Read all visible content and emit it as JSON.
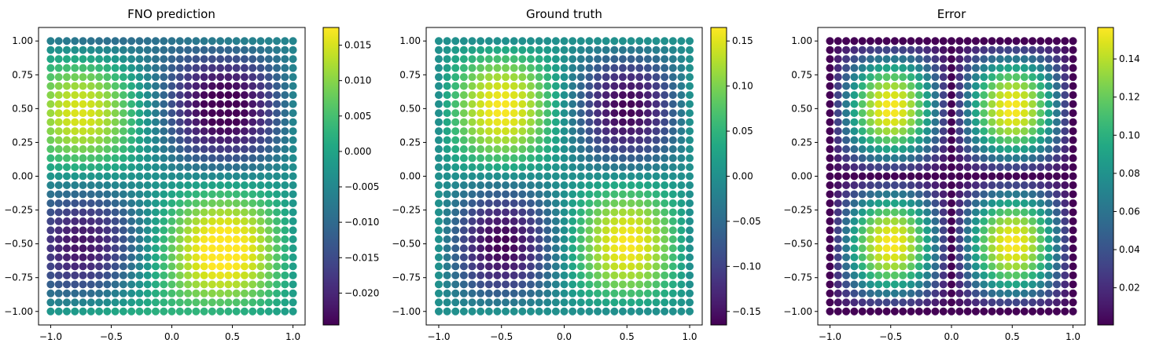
{
  "colormap": "viridis",
  "chart_data": [
    {
      "type": "scatter",
      "title": "FNO prediction",
      "xlabel": "",
      "ylabel": "",
      "xlim": [
        -1.1,
        1.1
      ],
      "ylim": [
        -1.1,
        1.1
      ],
      "grid": false,
      "x_ticks": [
        -1.0,
        -0.5,
        0.0,
        0.5,
        1.0
      ],
      "y_ticks": [
        -1.0,
        -0.75,
        -0.5,
        -0.25,
        0.0,
        0.25,
        0.5,
        0.75,
        1.0
      ],
      "x_tick_labels": [
        "−1.0",
        "−0.5",
        "0.0",
        "0.5",
        "1.0"
      ],
      "y_tick_labels": [
        "−1.00",
        "−0.75",
        "−0.50",
        "−0.25",
        "0.00",
        "0.25",
        "0.50",
        "0.75",
        "1.00"
      ],
      "point_grid": {
        "n": 31,
        "min": -1.0,
        "max": 1.0
      },
      "field": "prediction",
      "colorbar": {
        "min": -0.0245,
        "max": 0.0175,
        "ticks": [
          -0.02,
          -0.015,
          -0.01,
          -0.005,
          0.0,
          0.005,
          0.01,
          0.015
        ],
        "tick_labels": [
          "−0.020",
          "−0.015",
          "−0.010",
          "−0.005",
          "0.000",
          "0.005",
          "0.010",
          "0.015"
        ]
      }
    },
    {
      "type": "scatter",
      "title": "Ground truth",
      "xlabel": "",
      "ylabel": "",
      "xlim": [
        -1.1,
        1.1
      ],
      "ylim": [
        -1.1,
        1.1
      ],
      "grid": false,
      "x_ticks": [
        -1.0,
        -0.5,
        0.0,
        0.5,
        1.0
      ],
      "y_ticks": [
        -1.0,
        -0.75,
        -0.5,
        -0.25,
        0.0,
        0.25,
        0.5,
        0.75,
        1.0
      ],
      "x_tick_labels": [
        "−1.0",
        "−0.5",
        "0.0",
        "0.5",
        "1.0"
      ],
      "y_tick_labels": [
        "−1.00",
        "−0.75",
        "−0.50",
        "−0.25",
        "0.00",
        "0.25",
        "0.50",
        "0.75",
        "1.00"
      ],
      "point_grid": {
        "n": 31,
        "min": -1.0,
        "max": 1.0
      },
      "field": "truth",
      "colorbar": {
        "min": -0.165,
        "max": 0.165,
        "ticks": [
          -0.15,
          -0.1,
          -0.05,
          0.0,
          0.05,
          0.1,
          0.15
        ],
        "tick_labels": [
          "−0.15",
          "−0.10",
          "−0.05",
          "0.00",
          "0.05",
          "0.10",
          "0.15"
        ]
      }
    },
    {
      "type": "scatter",
      "title": "Error",
      "xlabel": "",
      "ylabel": "",
      "xlim": [
        -1.1,
        1.1
      ],
      "ylim": [
        -1.1,
        1.1
      ],
      "grid": false,
      "x_ticks": [
        -1.0,
        -0.5,
        0.0,
        0.5,
        1.0
      ],
      "y_ticks": [
        -1.0,
        -0.75,
        -0.5,
        -0.25,
        0.0,
        0.25,
        0.5,
        0.75,
        1.0
      ],
      "x_tick_labels": [
        "−1.0",
        "−0.5",
        "0.0",
        "0.5",
        "1.0"
      ],
      "y_tick_labels": [
        "−1.00",
        "−0.75",
        "−0.50",
        "−0.25",
        "0.00",
        "0.25",
        "0.50",
        "0.75",
        "1.00"
      ],
      "point_grid": {
        "n": 31,
        "min": -1.0,
        "max": 1.0
      },
      "field": "error",
      "colorbar": {
        "min": 0.0005,
        "max": 0.1565,
        "ticks": [
          0.02,
          0.04,
          0.06,
          0.08,
          0.1,
          0.12,
          0.14
        ],
        "tick_labels": [
          "0.02",
          "0.04",
          "0.06",
          "0.08",
          "0.10",
          "0.12",
          "0.14"
        ]
      }
    }
  ]
}
